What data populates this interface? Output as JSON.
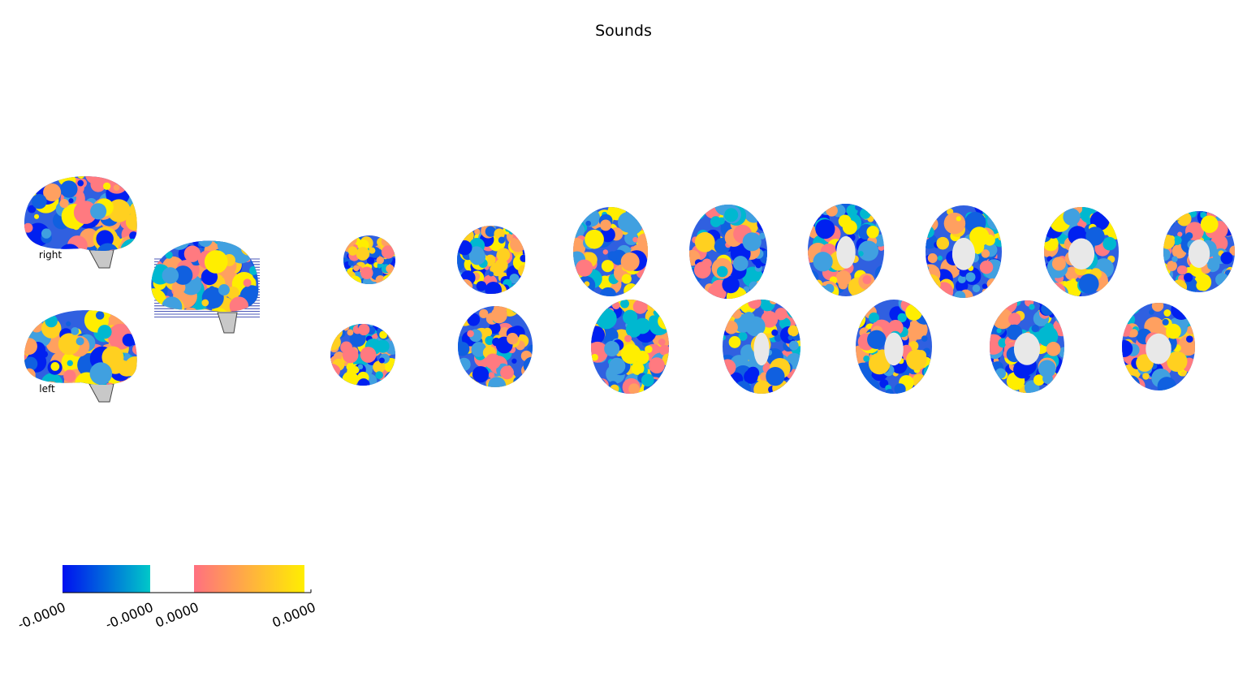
{
  "title": "Sounds",
  "sagittal_labels": [
    "right",
    "left"
  ],
  "colorbar": {
    "tick_labels": [
      "-0.0000",
      "-0.0000",
      "0.0000",
      "0.0000"
    ]
  }
}
